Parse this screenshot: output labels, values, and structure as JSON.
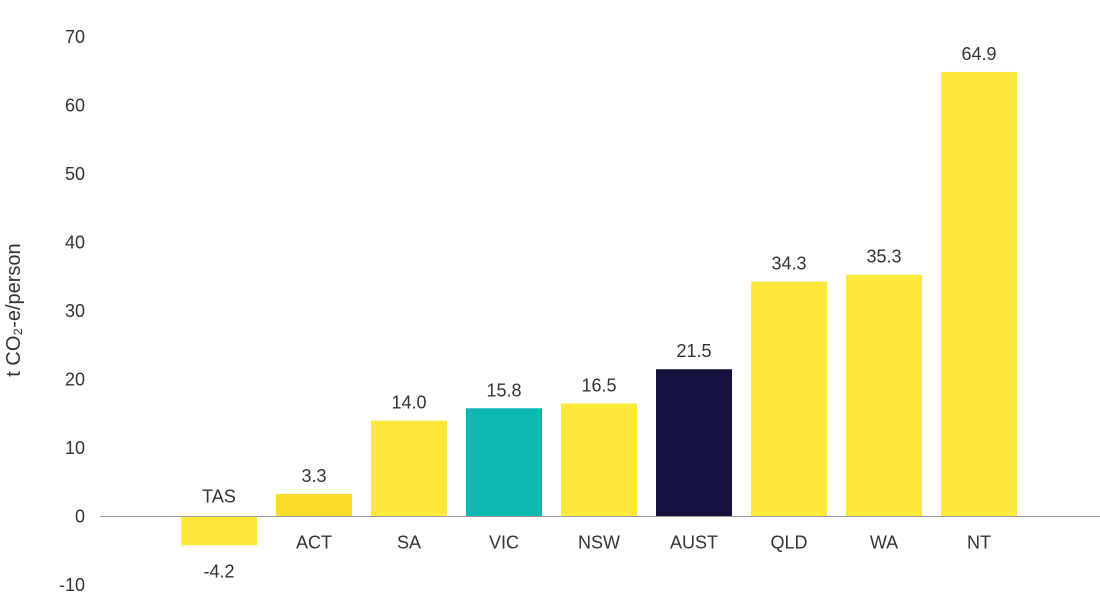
{
  "chart_data": {
    "type": "bar",
    "title": "",
    "xlabel": "",
    "ylabel": "t CO₂-e/person",
    "ylim": [
      -10,
      70
    ],
    "yticks": [
      -10,
      0,
      10,
      20,
      30,
      40,
      50,
      60,
      70
    ],
    "grid": false,
    "categories": [
      "TAS",
      "ACT",
      "SA",
      "VIC",
      "NSW",
      "AUST",
      "QLD",
      "WA",
      "NT"
    ],
    "values": [
      -4.2,
      3.3,
      14.0,
      15.8,
      16.5,
      21.5,
      34.3,
      35.3,
      64.9
    ],
    "value_labels": [
      "-4.2",
      "3.3",
      "14.0",
      "15.8",
      "16.5",
      "21.5",
      "34.3",
      "35.3",
      "64.9"
    ],
    "colors": [
      "#fce93a",
      "#fcdc2a",
      "#fce93a",
      "#0db8b0",
      "#fce93a",
      "#15113f",
      "#fce93a",
      "#fce93a",
      "#fce93a"
    ]
  }
}
